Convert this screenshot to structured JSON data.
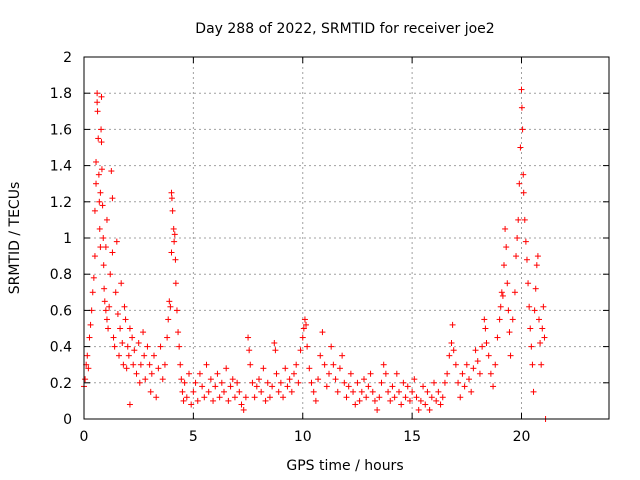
{
  "chart_data": {
    "type": "scatter",
    "title": "Day 288 of 2022, SRMTID for receiver joe2",
    "xlabel": "GPS time / hours",
    "ylabel": "SRMTID / TECUs",
    "xlim": [
      0,
      24
    ],
    "ylim": [
      0,
      2
    ],
    "xticks": [
      0,
      5,
      10,
      15,
      20
    ],
    "yticks": [
      0,
      0.2,
      0.4,
      0.6,
      0.8,
      1,
      1.2,
      1.4,
      1.6,
      1.8,
      2
    ],
    "xtick_labels": [
      "0",
      "5",
      "10",
      "15",
      "20"
    ],
    "ytick_labels": [
      "0",
      "0.2",
      "0.4",
      "0.6",
      "0.8",
      "1",
      "1.2",
      "1.4",
      "1.6",
      "1.8",
      "2"
    ],
    "grid": true,
    "marker": "+",
    "color": "#ff0000",
    "series": [
      {
        "name": "SRMTID",
        "points": [
          [
            0.0,
            0.18
          ],
          [
            0.05,
            0.22
          ],
          [
            0.1,
            0.3
          ],
          [
            0.15,
            0.35
          ],
          [
            0.2,
            0.28
          ],
          [
            0.25,
            0.45
          ],
          [
            0.3,
            0.52
          ],
          [
            0.35,
            0.6
          ],
          [
            0.4,
            0.7
          ],
          [
            0.45,
            0.78
          ],
          [
            0.5,
            0.9
          ],
          [
            0.5,
            1.15
          ],
          [
            0.55,
            1.3
          ],
          [
            0.55,
            1.42
          ],
          [
            0.6,
            1.8
          ],
          [
            0.6,
            1.75
          ],
          [
            0.62,
            1.7
          ],
          [
            0.65,
            1.55
          ],
          [
            0.68,
            1.35
          ],
          [
            0.7,
            1.2
          ],
          [
            0.72,
            1.05
          ],
          [
            0.75,
            0.95
          ],
          [
            0.75,
            1.25
          ],
          [
            0.78,
            1.6
          ],
          [
            0.8,
            1.78
          ],
          [
            0.8,
            1.53
          ],
          [
            0.82,
            1.38
          ],
          [
            0.85,
            1.18
          ],
          [
            0.88,
            1.0
          ],
          [
            0.9,
            0.85
          ],
          [
            0.92,
            0.72
          ],
          [
            0.95,
            0.65
          ],
          [
            1.0,
            0.6
          ],
          [
            1.0,
            0.95
          ],
          [
            1.05,
            1.1
          ],
          [
            1.05,
            0.55
          ],
          [
            1.1,
            0.5
          ],
          [
            1.15,
            0.62
          ],
          [
            1.2,
            0.8
          ],
          [
            1.25,
            1.37
          ],
          [
            1.3,
            0.92
          ],
          [
            1.3,
            1.22
          ],
          [
            1.35,
            0.45
          ],
          [
            1.4,
            0.4
          ],
          [
            1.45,
            0.7
          ],
          [
            1.5,
            0.98
          ],
          [
            1.55,
            0.58
          ],
          [
            1.6,
            0.35
          ],
          [
            1.65,
            0.5
          ],
          [
            1.7,
            0.75
          ],
          [
            1.75,
            0.42
          ],
          [
            1.8,
            0.3
          ],
          [
            1.85,
            0.62
          ],
          [
            1.9,
            0.55
          ],
          [
            1.95,
            0.28
          ],
          [
            2.0,
            0.4
          ],
          [
            2.05,
            0.35
          ],
          [
            2.1,
            0.5
          ],
          [
            2.1,
            0.08
          ],
          [
            2.2,
            0.45
          ],
          [
            2.25,
            0.3
          ],
          [
            2.3,
            0.38
          ],
          [
            2.4,
            0.25
          ],
          [
            2.5,
            0.42
          ],
          [
            2.55,
            0.2
          ],
          [
            2.6,
            0.3
          ],
          [
            2.7,
            0.48
          ],
          [
            2.75,
            0.35
          ],
          [
            2.8,
            0.22
          ],
          [
            2.9,
            0.4
          ],
          [
            3.0,
            0.3
          ],
          [
            3.05,
            0.15
          ],
          [
            3.1,
            0.25
          ],
          [
            3.2,
            0.35
          ],
          [
            3.3,
            0.12
          ],
          [
            3.4,
            0.28
          ],
          [
            3.5,
            0.4
          ],
          [
            3.6,
            0.22
          ],
          [
            3.7,
            0.3
          ],
          [
            3.8,
            0.45
          ],
          [
            3.85,
            0.55
          ],
          [
            3.9,
            0.65
          ],
          [
            3.95,
            0.62
          ],
          [
            4.0,
            0.92
          ],
          [
            4.0,
            1.25
          ],
          [
            4.02,
            1.22
          ],
          [
            4.05,
            1.15
          ],
          [
            4.1,
            1.05
          ],
          [
            4.12,
            0.98
          ],
          [
            4.15,
            1.02
          ],
          [
            4.18,
            0.88
          ],
          [
            4.2,
            0.75
          ],
          [
            4.25,
            0.6
          ],
          [
            4.3,
            0.48
          ],
          [
            4.35,
            0.4
          ],
          [
            4.4,
            0.3
          ],
          [
            4.45,
            0.22
          ],
          [
            4.5,
            0.15
          ],
          [
            4.55,
            0.1
          ],
          [
            4.6,
            0.2
          ],
          [
            4.7,
            0.12
          ],
          [
            4.8,
            0.25
          ],
          [
            4.9,
            0.08
          ],
          [
            5.0,
            0.15
          ],
          [
            5.1,
            0.2
          ],
          [
            5.2,
            0.1
          ],
          [
            5.3,
            0.25
          ],
          [
            5.4,
            0.18
          ],
          [
            5.5,
            0.12
          ],
          [
            5.6,
            0.3
          ],
          [
            5.7,
            0.15
          ],
          [
            5.8,
            0.22
          ],
          [
            5.9,
            0.1
          ],
          [
            6.0,
            0.18
          ],
          [
            6.1,
            0.25
          ],
          [
            6.2,
            0.12
          ],
          [
            6.3,
            0.2
          ],
          [
            6.4,
            0.15
          ],
          [
            6.5,
            0.28
          ],
          [
            6.6,
            0.1
          ],
          [
            6.7,
            0.18
          ],
          [
            6.8,
            0.22
          ],
          [
            6.9,
            0.12
          ],
          [
            7.0,
            0.2
          ],
          [
            7.1,
            0.15
          ],
          [
            7.2,
            0.08
          ],
          [
            7.3,
            0.05
          ],
          [
            7.4,
            0.12
          ],
          [
            7.5,
            0.45
          ],
          [
            7.55,
            0.38
          ],
          [
            7.6,
            0.3
          ],
          [
            7.7,
            0.2
          ],
          [
            7.8,
            0.12
          ],
          [
            7.9,
            0.18
          ],
          [
            8.0,
            0.22
          ],
          [
            8.1,
            0.15
          ],
          [
            8.2,
            0.28
          ],
          [
            8.3,
            0.1
          ],
          [
            8.4,
            0.2
          ],
          [
            8.5,
            0.12
          ],
          [
            8.6,
            0.18
          ],
          [
            8.7,
            0.42
          ],
          [
            8.75,
            0.38
          ],
          [
            8.8,
            0.25
          ],
          [
            8.9,
            0.15
          ],
          [
            9.0,
            0.2
          ],
          [
            9.1,
            0.12
          ],
          [
            9.2,
            0.28
          ],
          [
            9.3,
            0.18
          ],
          [
            9.4,
            0.22
          ],
          [
            9.5,
            0.15
          ],
          [
            9.6,
            0.25
          ],
          [
            9.7,
            0.3
          ],
          [
            9.8,
            0.2
          ],
          [
            9.9,
            0.38
          ],
          [
            10.0,
            0.45
          ],
          [
            10.05,
            0.5
          ],
          [
            10.1,
            0.55
          ],
          [
            10.15,
            0.52
          ],
          [
            10.2,
            0.4
          ],
          [
            10.3,
            0.28
          ],
          [
            10.4,
            0.2
          ],
          [
            10.5,
            0.15
          ],
          [
            10.6,
            0.1
          ],
          [
            10.7,
            0.22
          ],
          [
            10.8,
            0.35
          ],
          [
            10.9,
            0.48
          ],
          [
            11.0,
            0.3
          ],
          [
            11.1,
            0.18
          ],
          [
            11.2,
            0.25
          ],
          [
            11.3,
            0.4
          ],
          [
            11.4,
            0.3
          ],
          [
            11.5,
            0.22
          ],
          [
            11.6,
            0.15
          ],
          [
            11.7,
            0.28
          ],
          [
            11.8,
            0.35
          ],
          [
            11.9,
            0.2
          ],
          [
            12.0,
            0.12
          ],
          [
            12.1,
            0.18
          ],
          [
            12.2,
            0.25
          ],
          [
            12.3,
            0.15
          ],
          [
            12.4,
            0.08
          ],
          [
            12.5,
            0.2
          ],
          [
            12.6,
            0.1
          ],
          [
            12.7,
            0.15
          ],
          [
            12.8,
            0.22
          ],
          [
            12.9,
            0.12
          ],
          [
            13.0,
            0.18
          ],
          [
            13.1,
            0.25
          ],
          [
            13.2,
            0.15
          ],
          [
            13.3,
            0.1
          ],
          [
            13.4,
            0.05
          ],
          [
            13.5,
            0.12
          ],
          [
            13.6,
            0.2
          ],
          [
            13.7,
            0.3
          ],
          [
            13.8,
            0.25
          ],
          [
            13.9,
            0.15
          ],
          [
            14.0,
            0.1
          ],
          [
            14.1,
            0.18
          ],
          [
            14.2,
            0.12
          ],
          [
            14.3,
            0.25
          ],
          [
            14.4,
            0.15
          ],
          [
            14.5,
            0.08
          ],
          [
            14.6,
            0.2
          ],
          [
            14.7,
            0.12
          ],
          [
            14.8,
            0.18
          ],
          [
            14.9,
            0.1
          ],
          [
            15.0,
            0.15
          ],
          [
            15.1,
            0.22
          ],
          [
            15.2,
            0.12
          ],
          [
            15.3,
            0.05
          ],
          [
            15.4,
            0.1
          ],
          [
            15.5,
            0.18
          ],
          [
            15.6,
            0.08
          ],
          [
            15.7,
            0.15
          ],
          [
            15.8,
            0.05
          ],
          [
            15.9,
            0.12
          ],
          [
            16.0,
            0.2
          ],
          [
            16.1,
            0.1
          ],
          [
            16.2,
            0.15
          ],
          [
            16.3,
            0.08
          ],
          [
            16.4,
            0.12
          ],
          [
            16.5,
            0.2
          ],
          [
            16.6,
            0.25
          ],
          [
            16.7,
            0.35
          ],
          [
            16.8,
            0.42
          ],
          [
            16.85,
            0.52
          ],
          [
            16.9,
            0.38
          ],
          [
            17.0,
            0.3
          ],
          [
            17.1,
            0.2
          ],
          [
            17.2,
            0.12
          ],
          [
            17.3,
            0.25
          ],
          [
            17.4,
            0.18
          ],
          [
            17.5,
            0.3
          ],
          [
            17.6,
            0.22
          ],
          [
            17.7,
            0.15
          ],
          [
            17.8,
            0.28
          ],
          [
            17.9,
            0.38
          ],
          [
            18.0,
            0.32
          ],
          [
            18.1,
            0.25
          ],
          [
            18.2,
            0.4
          ],
          [
            18.3,
            0.55
          ],
          [
            18.35,
            0.5
          ],
          [
            18.4,
            0.42
          ],
          [
            18.5,
            0.35
          ],
          [
            18.6,
            0.25
          ],
          [
            18.7,
            0.18
          ],
          [
            18.8,
            0.3
          ],
          [
            18.9,
            0.45
          ],
          [
            19.0,
            0.55
          ],
          [
            19.05,
            0.62
          ],
          [
            19.1,
            0.7
          ],
          [
            19.15,
            0.68
          ],
          [
            19.2,
            0.85
          ],
          [
            19.25,
            1.05
          ],
          [
            19.3,
            0.95
          ],
          [
            19.35,
            0.75
          ],
          [
            19.4,
            0.6
          ],
          [
            19.45,
            0.48
          ],
          [
            19.5,
            0.35
          ],
          [
            19.6,
            0.55
          ],
          [
            19.7,
            0.7
          ],
          [
            19.75,
            0.9
          ],
          [
            19.8,
            1.0
          ],
          [
            19.85,
            1.1
          ],
          [
            19.9,
            1.3
          ],
          [
            19.95,
            1.5
          ],
          [
            20.0,
            1.82
          ],
          [
            20.02,
            1.72
          ],
          [
            20.05,
            1.6
          ],
          [
            20.08,
            1.35
          ],
          [
            20.1,
            1.25
          ],
          [
            20.15,
            1.1
          ],
          [
            20.2,
            0.98
          ],
          [
            20.25,
            0.88
          ],
          [
            20.3,
            0.75
          ],
          [
            20.35,
            0.62
          ],
          [
            20.4,
            0.5
          ],
          [
            20.45,
            0.4
          ],
          [
            20.5,
            0.3
          ],
          [
            20.55,
            0.15
          ],
          [
            20.6,
            0.6
          ],
          [
            20.65,
            0.72
          ],
          [
            20.7,
            0.85
          ],
          [
            20.75,
            0.9
          ],
          [
            20.8,
            0.55
          ],
          [
            20.85,
            0.42
          ],
          [
            20.9,
            0.3
          ],
          [
            20.95,
            0.5
          ],
          [
            21.0,
            0.62
          ],
          [
            21.05,
            0.45
          ],
          [
            21.1,
            0.0
          ]
        ]
      }
    ]
  }
}
